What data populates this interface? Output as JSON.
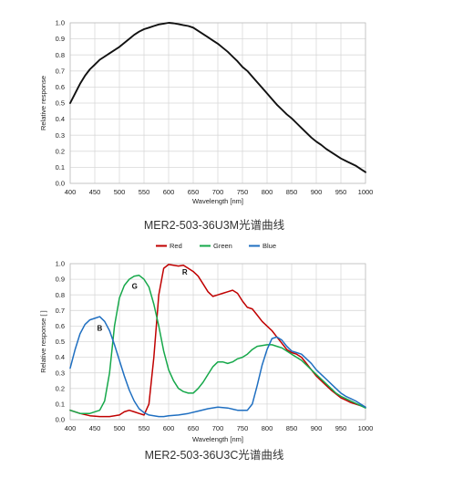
{
  "chart_data": [
    {
      "type": "line",
      "title": "",
      "caption": "MER2-503-36U3M光谱曲线",
      "xlabel": "Wavelength [nm]",
      "ylabel": "Relative response",
      "xlim": [
        400,
        1000
      ],
      "ylim": [
        0,
        1.0
      ],
      "xticks": [
        "400",
        "450",
        "500",
        "550",
        "600",
        "650",
        "700",
        "750",
        "800",
        "850",
        "900",
        "950",
        "1000"
      ],
      "yticks": [
        "0.0",
        "0.1",
        "0.2",
        "0.3",
        "0.4",
        "0.5",
        "0.6",
        "0.7",
        "0.8",
        "0.9",
        "1.0"
      ],
      "grid": true,
      "series": [
        {
          "color": "#111111",
          "x": [
            400,
            410,
            420,
            430,
            440,
            450,
            460,
            470,
            480,
            490,
            500,
            510,
            520,
            530,
            540,
            550,
            560,
            570,
            580,
            590,
            600,
            610,
            620,
            630,
            640,
            650,
            660,
            670,
            680,
            690,
            700,
            710,
            720,
            730,
            740,
            750,
            760,
            770,
            780,
            790,
            800,
            810,
            820,
            830,
            840,
            850,
            860,
            870,
            880,
            890,
            900,
            910,
            920,
            930,
            940,
            950,
            960,
            970,
            980,
            990,
            1000
          ],
          "y": [
            0.5,
            0.56,
            0.62,
            0.67,
            0.71,
            0.74,
            0.77,
            0.79,
            0.81,
            0.83,
            0.85,
            0.875,
            0.9,
            0.925,
            0.945,
            0.96,
            0.97,
            0.98,
            0.99,
            0.995,
            1.0,
            0.997,
            0.992,
            0.985,
            0.98,
            0.97,
            0.95,
            0.93,
            0.91,
            0.89,
            0.87,
            0.845,
            0.82,
            0.79,
            0.76,
            0.725,
            0.7,
            0.665,
            0.63,
            0.595,
            0.56,
            0.525,
            0.49,
            0.46,
            0.43,
            0.405,
            0.375,
            0.345,
            0.315,
            0.285,
            0.26,
            0.24,
            0.215,
            0.195,
            0.175,
            0.155,
            0.14,
            0.125,
            0.11,
            0.09,
            0.07
          ]
        }
      ]
    },
    {
      "type": "line",
      "title": "",
      "caption": "MER2-503-36U3C光谱曲线",
      "xlabel": "Wavelength [nm]",
      "ylabel": "Relative response [ ]",
      "xlim": [
        400,
        1000
      ],
      "ylim": [
        0,
        1.0
      ],
      "xticks": [
        "400",
        "450",
        "500",
        "550",
        "600",
        "650",
        "700",
        "750",
        "800",
        "850",
        "900",
        "950",
        "1000"
      ],
      "yticks": [
        "0.0",
        "0.1",
        "0.2",
        "0.3",
        "0.4",
        "0.5",
        "0.6",
        "0.7",
        "0.8",
        "0.9",
        "1.0"
      ],
      "grid": true,
      "legend_position": "top-center",
      "annotations": [
        {
          "text": "R",
          "x": 633,
          "y": 0.93
        },
        {
          "text": "G",
          "x": 531,
          "y": 0.84
        },
        {
          "text": "B",
          "x": 460,
          "y": 0.57
        }
      ],
      "series": [
        {
          "name": "Red",
          "color": "#c00000",
          "x": [
            400,
            420,
            440,
            460,
            480,
            500,
            510,
            520,
            530,
            540,
            550,
            560,
            570,
            580,
            590,
            600,
            610,
            620,
            630,
            640,
            650,
            660,
            670,
            680,
            690,
            700,
            710,
            720,
            730,
            740,
            750,
            760,
            770,
            780,
            790,
            800,
            810,
            820,
            830,
            840,
            850,
            860,
            870,
            880,
            890,
            900,
            910,
            920,
            930,
            940,
            950,
            960,
            970,
            980,
            990,
            1000
          ],
          "y": [
            0.06,
            0.04,
            0.025,
            0.02,
            0.02,
            0.03,
            0.05,
            0.06,
            0.05,
            0.04,
            0.03,
            0.1,
            0.4,
            0.8,
            0.97,
            0.995,
            0.99,
            0.985,
            0.99,
            0.97,
            0.95,
            0.92,
            0.87,
            0.82,
            0.79,
            0.8,
            0.81,
            0.82,
            0.83,
            0.81,
            0.76,
            0.72,
            0.71,
            0.67,
            0.63,
            0.6,
            0.57,
            0.53,
            0.49,
            0.45,
            0.43,
            0.42,
            0.4,
            0.36,
            0.32,
            0.28,
            0.25,
            0.22,
            0.19,
            0.165,
            0.14,
            0.125,
            0.11,
            0.1,
            0.09,
            0.08
          ]
        },
        {
          "name": "Green",
          "color": "#16a84a",
          "x": [
            400,
            420,
            440,
            460,
            470,
            480,
            490,
            500,
            510,
            520,
            530,
            540,
            550,
            560,
            570,
            580,
            590,
            600,
            610,
            620,
            630,
            640,
            650,
            660,
            670,
            680,
            690,
            700,
            710,
            720,
            730,
            740,
            750,
            760,
            770,
            780,
            790,
            800,
            810,
            820,
            830,
            840,
            850,
            860,
            870,
            880,
            890,
            900,
            910,
            920,
            930,
            940,
            950,
            960,
            970,
            980,
            990,
            1000
          ],
          "y": [
            0.06,
            0.04,
            0.04,
            0.06,
            0.12,
            0.3,
            0.6,
            0.78,
            0.86,
            0.9,
            0.92,
            0.925,
            0.9,
            0.85,
            0.74,
            0.6,
            0.44,
            0.32,
            0.25,
            0.2,
            0.18,
            0.17,
            0.17,
            0.2,
            0.24,
            0.29,
            0.34,
            0.37,
            0.37,
            0.36,
            0.37,
            0.39,
            0.4,
            0.42,
            0.45,
            0.47,
            0.475,
            0.48,
            0.48,
            0.47,
            0.46,
            0.44,
            0.42,
            0.4,
            0.38,
            0.35,
            0.32,
            0.29,
            0.26,
            0.23,
            0.2,
            0.17,
            0.15,
            0.135,
            0.12,
            0.105,
            0.09,
            0.075
          ]
        },
        {
          "name": "Blue",
          "color": "#1f6fc1",
          "x": [
            400,
            410,
            420,
            430,
            440,
            450,
            460,
            470,
            480,
            490,
            500,
            510,
            520,
            530,
            540,
            550,
            560,
            570,
            580,
            590,
            600,
            620,
            640,
            660,
            680,
            700,
            720,
            740,
            760,
            770,
            780,
            790,
            800,
            810,
            820,
            830,
            840,
            850,
            860,
            870,
            880,
            890,
            900,
            910,
            920,
            930,
            940,
            950,
            960,
            970,
            980,
            990,
            1000
          ],
          "y": [
            0.33,
            0.45,
            0.55,
            0.61,
            0.64,
            0.65,
            0.66,
            0.63,
            0.57,
            0.48,
            0.38,
            0.28,
            0.19,
            0.12,
            0.07,
            0.045,
            0.03,
            0.025,
            0.02,
            0.02,
            0.025,
            0.03,
            0.04,
            0.055,
            0.07,
            0.08,
            0.075,
            0.06,
            0.06,
            0.1,
            0.22,
            0.35,
            0.45,
            0.52,
            0.53,
            0.51,
            0.47,
            0.44,
            0.43,
            0.42,
            0.39,
            0.36,
            0.32,
            0.29,
            0.26,
            0.23,
            0.2,
            0.17,
            0.15,
            0.135,
            0.12,
            0.1,
            0.08
          ]
        }
      ]
    }
  ]
}
